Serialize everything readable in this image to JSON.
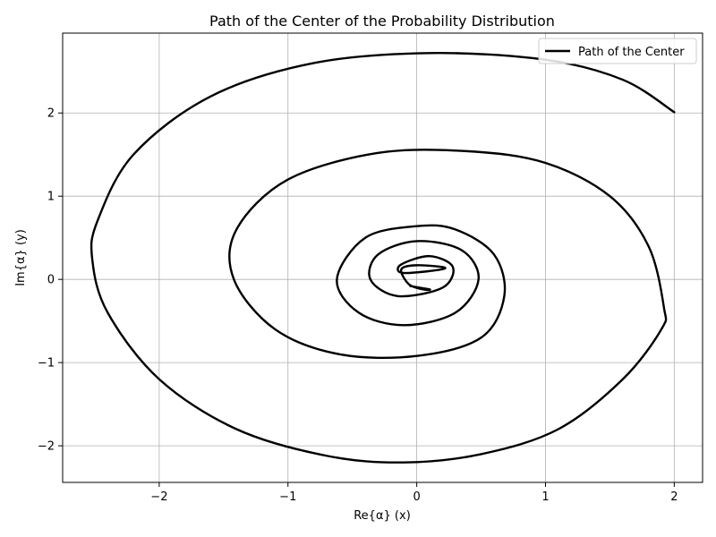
{
  "chart_data": {
    "type": "line",
    "title": "Path of the Center of the Probability Distribution",
    "xlabel": "Re{α} (x)",
    "ylabel": "Im{α} (y)",
    "xlim": [
      -2.75,
      2.22
    ],
    "ylim": [
      -2.44,
      2.96
    ],
    "xticks": [
      -2,
      -1,
      0,
      1,
      2
    ],
    "yticks": [
      -2,
      -1,
      0,
      1,
      2
    ],
    "xtick_labels": [
      "−2",
      "−1",
      "0",
      "1",
      "2"
    ],
    "ytick_labels": [
      "−2",
      "−1",
      "0",
      "1",
      "2"
    ],
    "grid": true,
    "legend": {
      "placement": "top-right",
      "entries": [
        "Path of the Center"
      ]
    },
    "series": [
      {
        "name": "Path of the Center",
        "color": "#000000",
        "description_points": "spiral starting at (2, 2) decaying inward to near (0, 0.12)",
        "points": [
          [
            2.0,
            2.01
          ],
          [
            1.6,
            2.4
          ],
          [
            1.0,
            2.64
          ],
          [
            0.1,
            2.72
          ],
          [
            -0.8,
            2.6
          ],
          [
            -1.6,
            2.2
          ],
          [
            -2.2,
            1.5
          ],
          [
            -2.48,
            0.7
          ],
          [
            -2.52,
            0.24
          ],
          [
            -2.4,
            -0.4
          ],
          [
            -2.0,
            -1.2
          ],
          [
            -1.4,
            -1.8
          ],
          [
            -0.7,
            -2.12
          ],
          [
            -0.1,
            -2.2
          ],
          [
            0.5,
            -2.1
          ],
          [
            1.1,
            -1.8
          ],
          [
            1.6,
            -1.2
          ],
          [
            1.9,
            -0.6
          ],
          [
            1.92,
            -0.34
          ],
          [
            1.8,
            0.4
          ],
          [
            1.5,
            1.0
          ],
          [
            1.0,
            1.4
          ],
          [
            0.4,
            1.54
          ],
          [
            -0.3,
            1.52
          ],
          [
            -1.0,
            1.2
          ],
          [
            -1.4,
            0.6
          ],
          [
            -1.42,
            0.0
          ],
          [
            -1.1,
            -0.6
          ],
          [
            -0.6,
            -0.9
          ],
          [
            0.0,
            -0.92
          ],
          [
            0.5,
            -0.7
          ],
          [
            0.68,
            -0.2
          ],
          [
            0.6,
            0.3
          ],
          [
            0.3,
            0.6
          ],
          [
            0.0,
            0.64
          ],
          [
            -0.4,
            0.5
          ],
          [
            -0.62,
            0.0
          ],
          [
            -0.45,
            -0.4
          ],
          [
            -0.1,
            -0.55
          ],
          [
            0.3,
            -0.4
          ],
          [
            0.48,
            0.0
          ],
          [
            0.35,
            0.35
          ],
          [
            0.0,
            0.46
          ],
          [
            -0.3,
            0.3
          ],
          [
            -0.36,
            0.0
          ],
          [
            -0.15,
            -0.2
          ],
          [
            0.2,
            -0.1
          ],
          [
            0.28,
            0.15
          ],
          [
            0.1,
            0.28
          ],
          [
            -0.12,
            0.18
          ],
          [
            -0.12,
            0.08
          ],
          [
            0.1,
            0.1
          ],
          [
            0.22,
            0.14
          ],
          [
            0.0,
            0.17
          ],
          [
            -0.12,
            0.12
          ],
          [
            -0.06,
            -0.06
          ],
          [
            0.05,
            -0.12
          ],
          [
            0.1,
            -0.12
          ],
          [
            -0.05,
            -0.08
          ]
        ]
      }
    ]
  }
}
